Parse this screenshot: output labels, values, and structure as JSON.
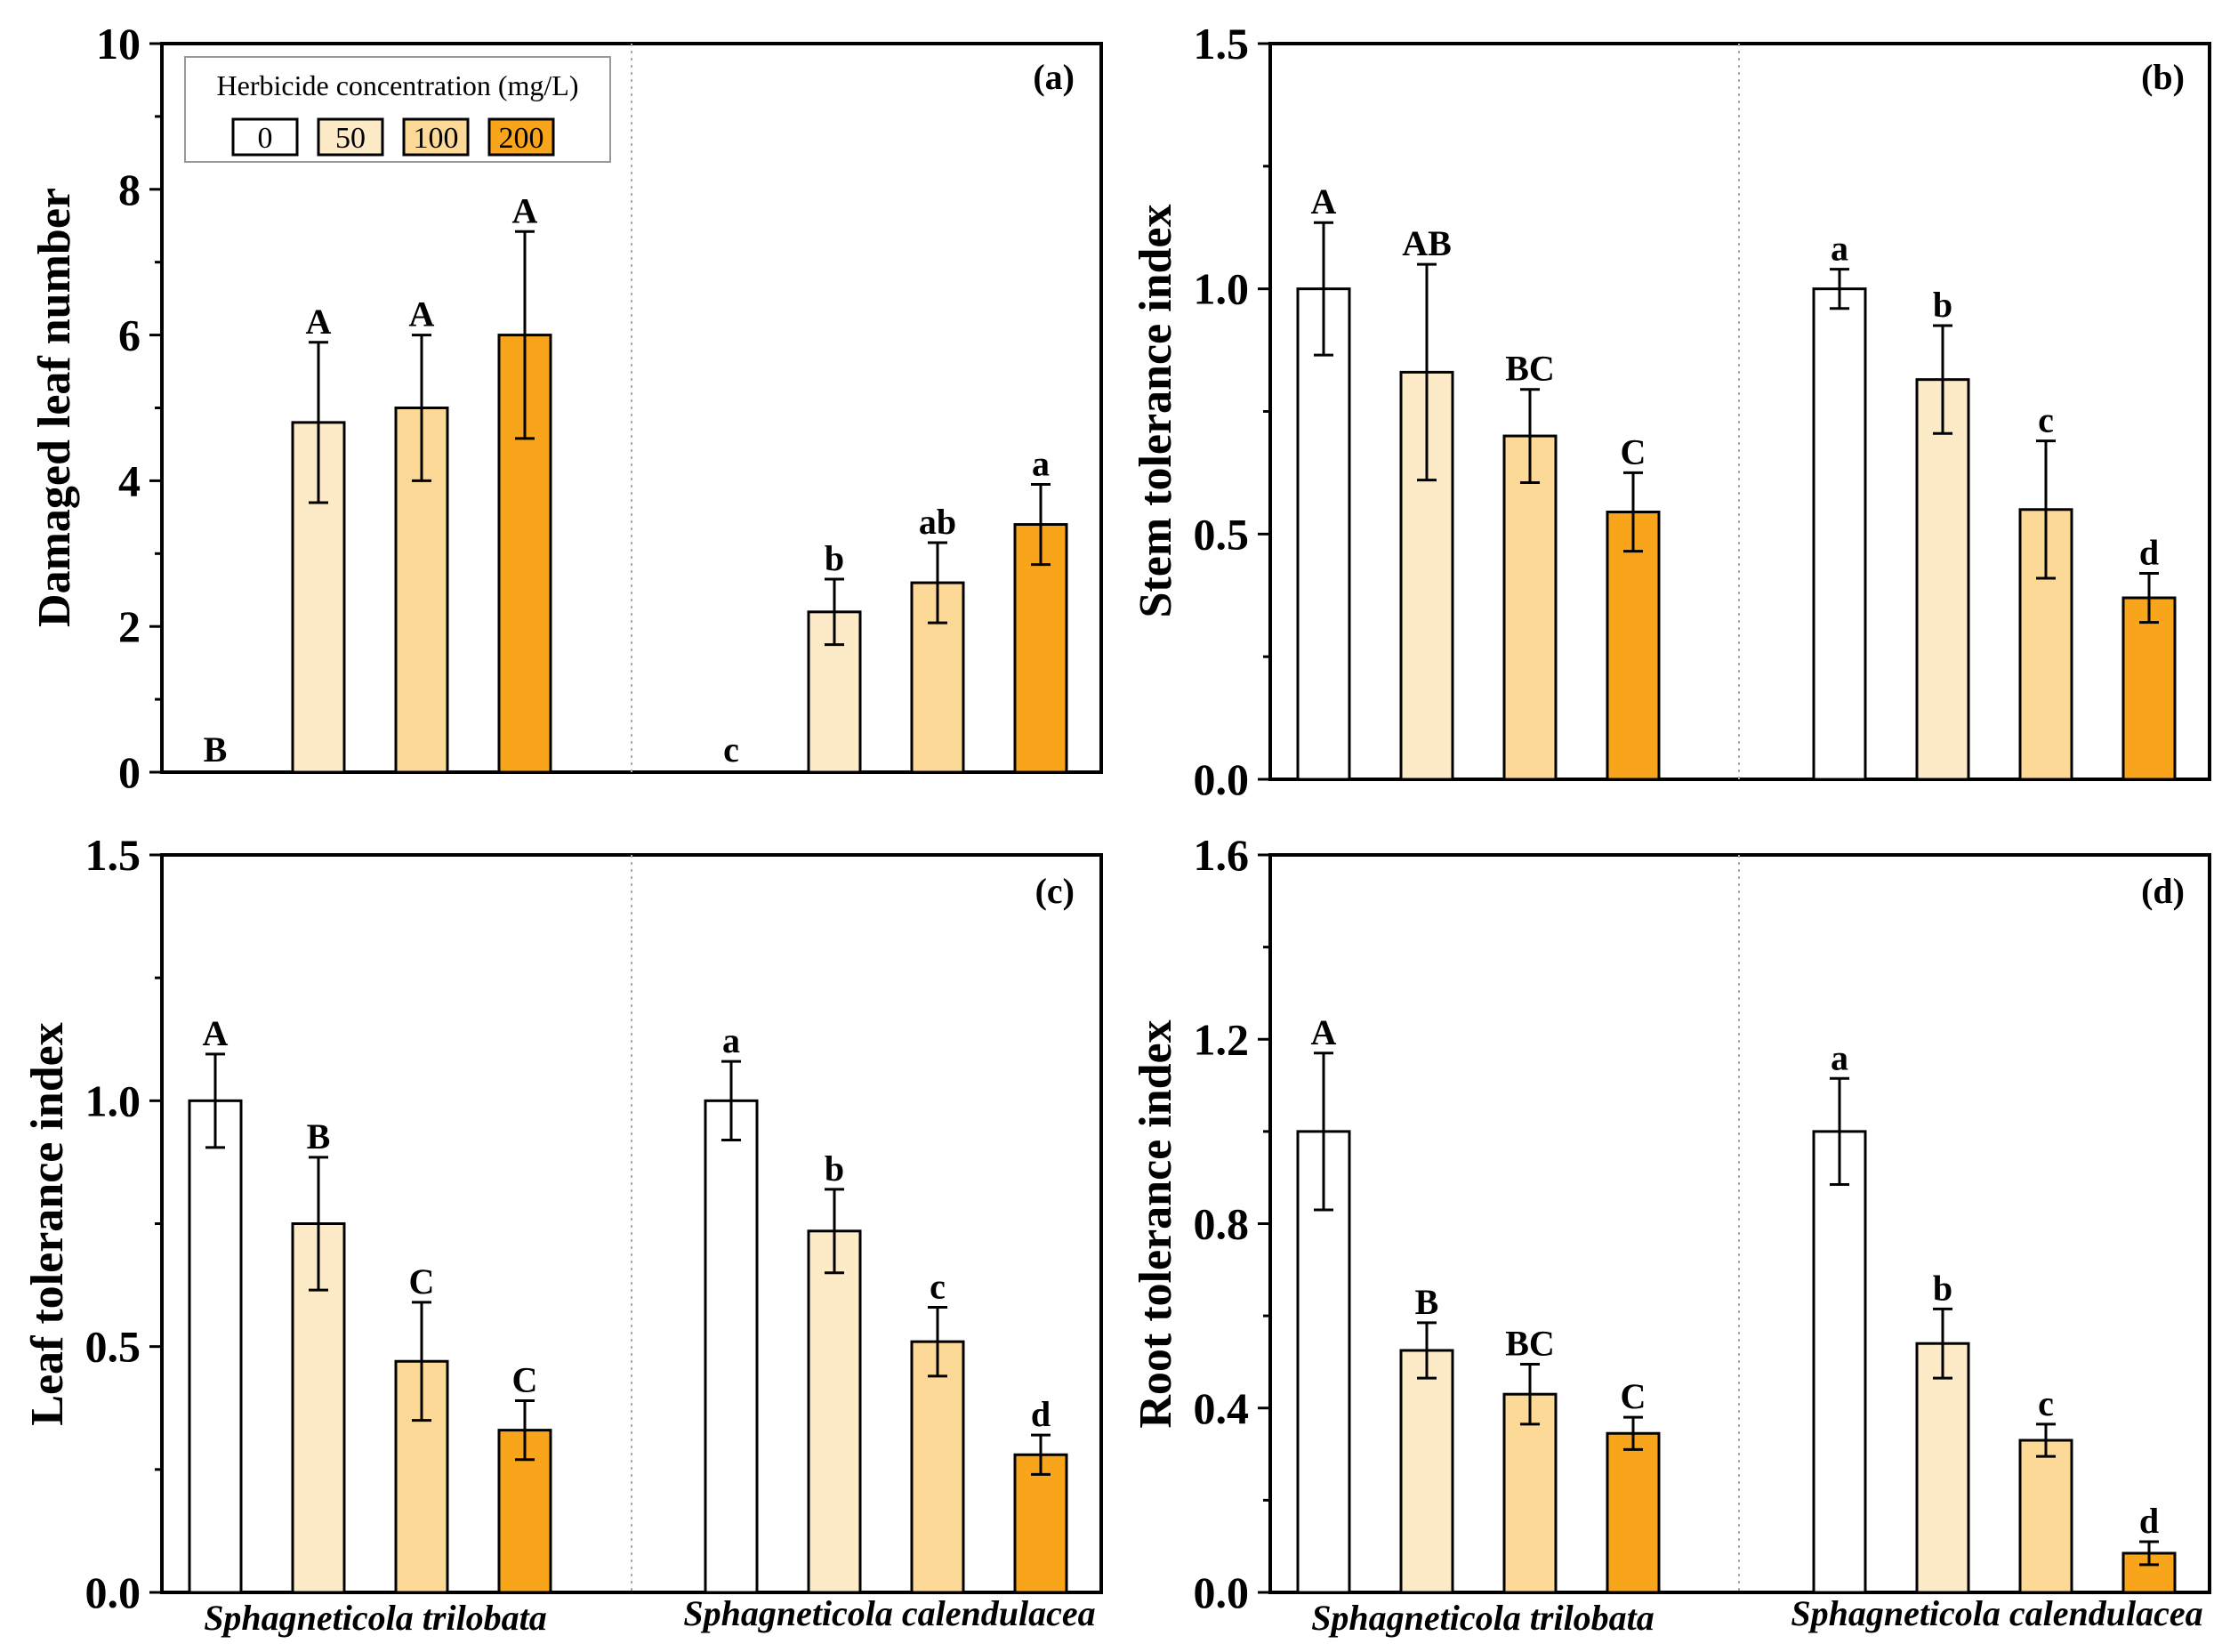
{
  "legend": {
    "title": "Herbicide concentration (mg/L)",
    "entries": [
      "0",
      "50",
      "100",
      "200"
    ],
    "colors": [
      "#ffffff",
      "#fdebc8",
      "#fdd998",
      "#f9a51b"
    ]
  },
  "chart_data": [
    {
      "type": "bar",
      "panel": "(a)",
      "ylabel": "Damaged leaf number",
      "ylim": [
        0,
        10
      ],
      "yticks": [
        0,
        2,
        4,
        6,
        8,
        10
      ],
      "ytick_labels": [
        "0",
        "2",
        "4",
        "6",
        "8",
        "10"
      ],
      "categories": [
        "Sphagneticola trilobata",
        "Sphagneticola calendulacea"
      ],
      "show_xlabels": false,
      "series": [
        {
          "name": "0",
          "values": [
            0,
            0
          ],
          "errors": [
            0,
            0
          ],
          "letters": [
            "B",
            "c"
          ]
        },
        {
          "name": "50",
          "values": [
            4.8,
            2.2
          ],
          "errors": [
            1.1,
            0.45
          ],
          "letters": [
            "A",
            "b"
          ]
        },
        {
          "name": "100",
          "values": [
            5.0,
            2.6
          ],
          "errors": [
            1.0,
            0.55
          ],
          "letters": [
            "A",
            "ab"
          ]
        },
        {
          "name": "200",
          "values": [
            6.0,
            3.4
          ],
          "errors": [
            1.42,
            0.55
          ],
          "letters": [
            "A",
            "a"
          ]
        }
      ]
    },
    {
      "type": "bar",
      "panel": "(b)",
      "ylabel": "Stem tolerance index",
      "ylim": [
        0,
        1.5
      ],
      "yticks": [
        0,
        0.5,
        1.0,
        1.5
      ],
      "ytick_labels": [
        "0.0",
        "0.5",
        "1.0",
        "1.5"
      ],
      "categories": [
        "Sphagneticola trilobata",
        "Sphagneticola calendulacea"
      ],
      "show_xlabels": false,
      "series": [
        {
          "name": "0",
          "values": [
            1.0,
            1.0
          ],
          "errors": [
            0.135,
            0.04
          ],
          "letters": [
            "A",
            "a"
          ]
        },
        {
          "name": "50",
          "values": [
            0.83,
            0.815
          ],
          "errors": [
            0.22,
            0.11
          ],
          "letters": [
            "AB",
            "b"
          ]
        },
        {
          "name": "100",
          "values": [
            0.7,
            0.55
          ],
          "errors": [
            0.095,
            0.14
          ],
          "letters": [
            "BC",
            "c"
          ]
        },
        {
          "name": "200",
          "values": [
            0.545,
            0.37
          ],
          "errors": [
            0.08,
            0.05
          ],
          "letters": [
            "C",
            "d"
          ]
        }
      ]
    },
    {
      "type": "bar",
      "panel": "(c)",
      "ylabel": "Leaf tolerance index",
      "ylim": [
        0,
        1.5
      ],
      "yticks": [
        0,
        0.5,
        1.0,
        1.5
      ],
      "ytick_labels": [
        "0.0",
        "0.5",
        "1.0",
        "1.5"
      ],
      "categories": [
        "Sphagneticola trilobata",
        "Sphagneticola calendulacea"
      ],
      "show_xlabels": true,
      "series": [
        {
          "name": "0",
          "values": [
            1.0,
            1.0
          ],
          "errors": [
            0.095,
            0.08
          ],
          "letters": [
            "A",
            "a"
          ]
        },
        {
          "name": "50",
          "values": [
            0.75,
            0.735
          ],
          "errors": [
            0.135,
            0.085
          ],
          "letters": [
            "B",
            "b"
          ]
        },
        {
          "name": "100",
          "values": [
            0.47,
            0.51
          ],
          "errors": [
            0.12,
            0.07
          ],
          "letters": [
            "C",
            "c"
          ]
        },
        {
          "name": "200",
          "values": [
            0.33,
            0.28
          ],
          "errors": [
            0.06,
            0.04
          ],
          "letters": [
            "C",
            "d"
          ]
        }
      ]
    },
    {
      "type": "bar",
      "panel": "(d)",
      "ylabel": "Root tolerance index",
      "ylim": [
        0,
        1.6
      ],
      "yticks": [
        0,
        0.4,
        0.8,
        1.2,
        1.6
      ],
      "ytick_labels": [
        "0.0",
        "0.4",
        "0.8",
        "1.2",
        "1.6"
      ],
      "categories": [
        "Sphagneticola trilobata",
        "Sphagneticola calendulacea"
      ],
      "show_xlabels": true,
      "series": [
        {
          "name": "0",
          "values": [
            1.0,
            1.0
          ],
          "errors": [
            0.17,
            0.115
          ],
          "letters": [
            "A",
            "a"
          ]
        },
        {
          "name": "50",
          "values": [
            0.525,
            0.54
          ],
          "errors": [
            0.06,
            0.075
          ],
          "letters": [
            "B",
            "b"
          ]
        },
        {
          "name": "100",
          "values": [
            0.43,
            0.33
          ],
          "errors": [
            0.065,
            0.035
          ],
          "letters": [
            "BC",
            "c"
          ]
        },
        {
          "name": "200",
          "values": [
            0.345,
            0.085
          ],
          "errors": [
            0.035,
            0.025
          ],
          "letters": [
            "C",
            "d"
          ]
        }
      ]
    }
  ]
}
